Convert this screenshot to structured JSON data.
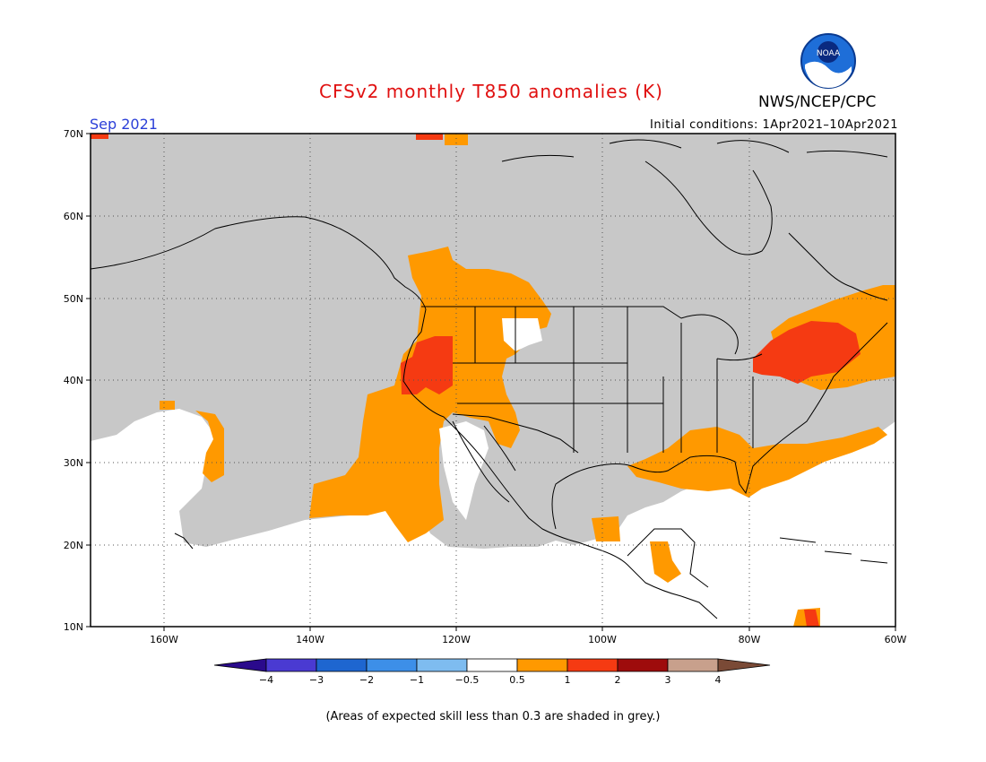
{
  "header": {
    "title": "CFSv2 monthly T850 anomalies (K)",
    "org": "NWS/NCEP/CPC",
    "month": "Sep 2021",
    "initial_conditions": "Initial conditions: 1Apr2021–10Apr2021",
    "logo_text": "NOAA"
  },
  "axes": {
    "lat_labels": [
      "70N",
      "60N",
      "50N",
      "40N",
      "30N",
      "20N",
      "10N"
    ],
    "lon_labels": [
      "160W",
      "140W",
      "120W",
      "100W",
      "80W",
      "60W"
    ]
  },
  "colorbar": {
    "labels": [
      "−4",
      "−3",
      "−2",
      "−1",
      "−0.5",
      "0.5",
      "1",
      "2",
      "3",
      "4"
    ],
    "colors": [
      "#2a0a8c",
      "#4a3ad2",
      "#1e66d0",
      "#3d8fe8",
      "#7ebcf0",
      "#ffffff",
      "#ff9900",
      "#f53a12",
      "#9e0c0c",
      "#c8a08c",
      "#7a4a36"
    ]
  },
  "legend": {
    "skill_note": "(Areas of expected skill less than 0.3 are shaded in grey.)",
    "grey_color": "#c8c8c8"
  },
  "footer": {}
}
